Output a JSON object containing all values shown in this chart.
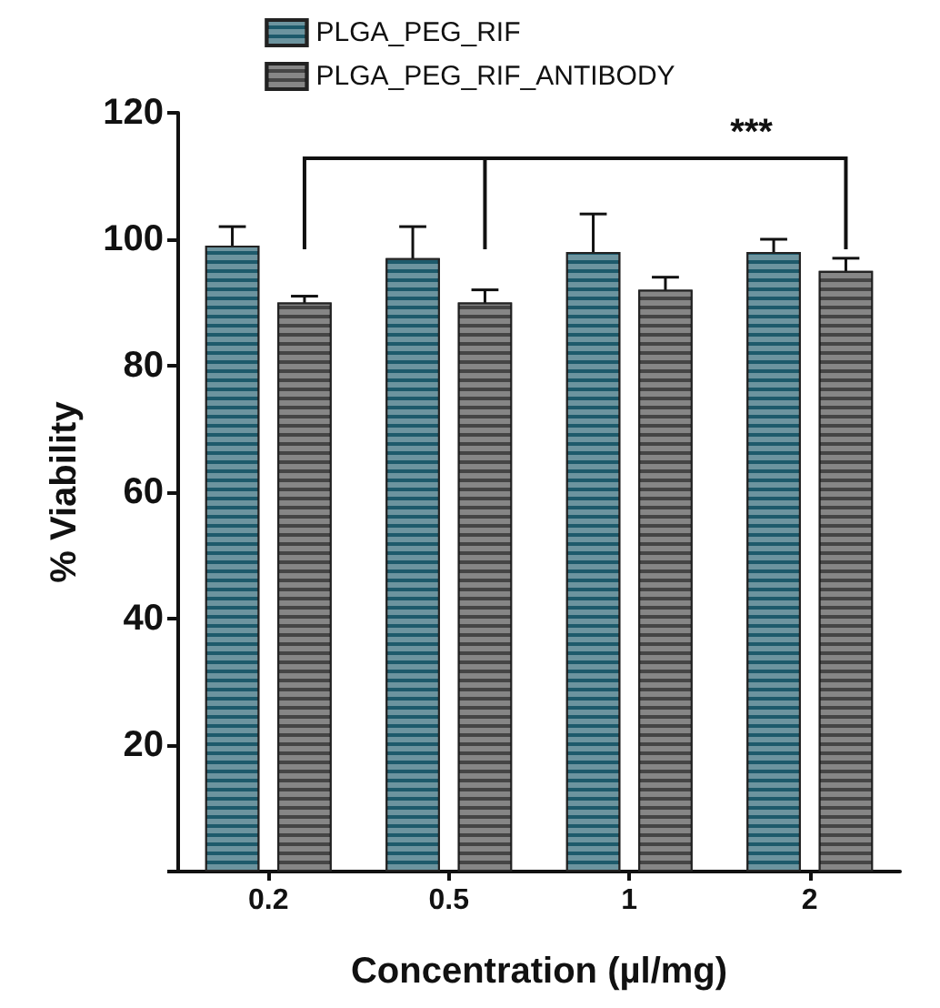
{
  "chart_data": {
    "type": "bar",
    "xlabel": "Concentration (µl/mg)",
    "ylabel": "% Viability",
    "categories": [
      "0.2",
      "0.5",
      "1",
      "2"
    ],
    "series": [
      {
        "name": "PLGA_PEG_RIF",
        "color": "#1d5a6b",
        "values": [
          99,
          97,
          98,
          98
        ],
        "errors": [
          3,
          5,
          6,
          2
        ]
      },
      {
        "name": "PLGA_PEG_RIF_ANTIBODY",
        "color": "#454545",
        "values": [
          90,
          90,
          92,
          95
        ],
        "errors": [
          1,
          2,
          2,
          2
        ]
      }
    ],
    "ylim": [
      0,
      120
    ],
    "yticks": [
      {
        "value": 0,
        "label": null
      },
      20,
      40,
      60,
      80,
      100,
      120
    ],
    "annotations": [
      "***"
    ],
    "grid": false,
    "legend": "top"
  }
}
